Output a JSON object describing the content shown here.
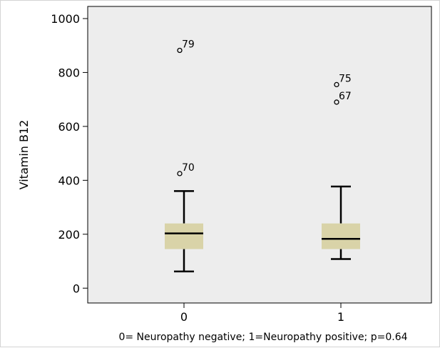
{
  "chart_data": {
    "type": "box",
    "xlabel": "0= Neuropathy negative; 1=Neuropathy positive; p=0.64",
    "ylabel": "Vitamin B12",
    "ylim": [
      -55,
      1045
    ],
    "yticks": [
      0,
      200,
      400,
      600,
      800,
      1000
    ],
    "categories": [
      "0",
      "1"
    ],
    "grid": false,
    "colors": {
      "plot_bg": "#ededed",
      "box_fill": "#d9d3a8",
      "stroke": "#000000"
    },
    "boxes": [
      {
        "category": "0",
        "whisker_low": 62,
        "q1": 145,
        "median": 203,
        "q3": 240,
        "whisker_high": 360,
        "outliers": [
          {
            "value": 425,
            "label": "70"
          },
          {
            "value": 882,
            "label": "79"
          }
        ]
      },
      {
        "category": "1",
        "whisker_low": 108,
        "q1": 145,
        "median": 183,
        "q3": 240,
        "whisker_high": 377,
        "outliers": [
          {
            "value": 690,
            "label": "67"
          },
          {
            "value": 755,
            "label": "75"
          }
        ]
      }
    ]
  }
}
